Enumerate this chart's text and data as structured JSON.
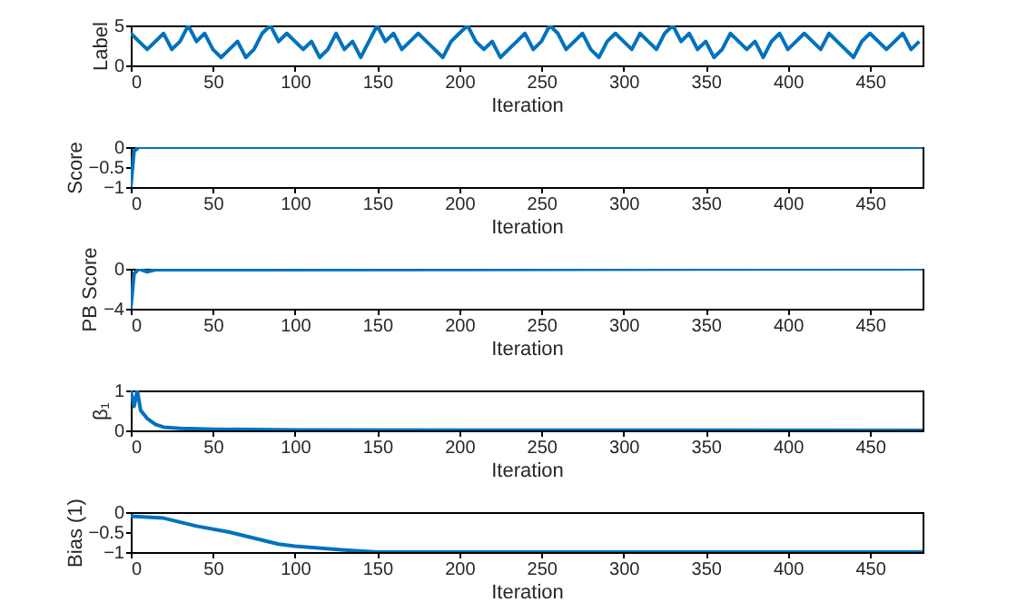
{
  "chart_data": [
    {
      "type": "line",
      "xlabel": "Iteration",
      "ylabel": "Label",
      "xlim": [
        0,
        482
      ],
      "xticks": [
        0,
        50,
        100,
        150,
        200,
        250,
        300,
        350,
        400,
        450
      ],
      "ylim": [
        0,
        5
      ],
      "yticks": [
        0,
        5
      ],
      "line_style": "solid",
      "x": [
        0,
        5,
        10,
        15,
        20,
        25,
        30,
        35,
        40,
        45,
        50,
        55,
        60,
        65,
        70,
        75,
        80,
        85,
        90,
        95,
        100,
        105,
        110,
        115,
        120,
        125,
        130,
        135,
        140,
        145,
        150,
        155,
        160,
        165,
        170,
        175,
        180,
        185,
        190,
        195,
        200,
        205,
        210,
        215,
        220,
        225,
        230,
        235,
        240,
        245,
        250,
        255,
        260,
        265,
        270,
        275,
        280,
        285,
        290,
        295,
        300,
        305,
        310,
        315,
        320,
        325,
        330,
        335,
        340,
        345,
        350,
        355,
        360,
        365,
        370,
        375,
        380,
        385,
        390,
        395,
        400,
        405,
        410,
        415,
        420,
        425,
        430,
        435,
        440,
        445,
        450,
        455,
        460,
        465,
        470,
        475,
        480
      ],
      "series": [
        {
          "color": "#0072bd",
          "values": [
            4,
            3,
            2,
            3,
            4,
            2,
            3,
            5,
            3,
            4,
            2,
            1,
            2,
            3,
            1,
            2,
            4,
            5,
            3,
            4,
            3,
            2,
            3,
            1,
            2,
            4,
            2,
            3,
            1,
            3,
            5,
            3,
            4,
            2,
            3,
            4,
            3,
            2,
            1,
            3,
            4,
            5,
            3,
            2,
            3,
            1,
            2,
            3,
            4,
            2,
            3,
            5,
            4,
            2,
            3,
            4,
            2,
            1,
            3,
            4,
            3,
            2,
            4,
            3,
            2,
            4,
            5,
            3,
            4,
            2,
            3,
            1,
            2,
            4,
            3,
            2,
            3,
            1,
            3,
            4,
            2,
            3,
            4,
            3,
            2,
            4,
            3,
            2,
            1,
            3,
            4,
            3,
            2,
            3,
            4,
            2,
            3
          ]
        }
      ]
    },
    {
      "type": "line",
      "xlabel": "Iteration",
      "ylabel": "Score",
      "xlim": [
        0,
        482
      ],
      "xticks": [
        0,
        50,
        100,
        150,
        200,
        250,
        300,
        350,
        400,
        450
      ],
      "ylim": [
        -1,
        0
      ],
      "yticks": [
        -1,
        -0.5,
        0
      ],
      "line_style": "solid",
      "x": [
        0,
        2,
        5,
        482
      ],
      "series": [
        {
          "color": "#0072bd",
          "values": [
            -1,
            -0.1,
            0,
            0
          ]
        }
      ]
    },
    {
      "type": "line",
      "xlabel": "Iteration",
      "ylabel": "PB Score",
      "xlim": [
        0,
        482
      ],
      "xticks": [
        0,
        50,
        100,
        150,
        200,
        250,
        300,
        350,
        400,
        450
      ],
      "ylim": [
        -4,
        0
      ],
      "yticks": [
        -4,
        0
      ],
      "line_style": "solid",
      "x": [
        0,
        2,
        5,
        10,
        15,
        482
      ],
      "series": [
        {
          "color": "#0072bd",
          "values": [
            -4,
            -0.5,
            0,
            -0.3,
            -0.1,
            0
          ]
        }
      ]
    },
    {
      "type": "line",
      "xlabel": "Iteration",
      "ylabel": "β₁",
      "xlim": [
        0,
        482
      ],
      "xticks": [
        0,
        50,
        100,
        150,
        200,
        250,
        300,
        350,
        400,
        450
      ],
      "ylim": [
        0,
        1
      ],
      "yticks": [
        0,
        1
      ],
      "line_style": "solid",
      "x": [
        0,
        2,
        4,
        6,
        10,
        15,
        20,
        30,
        50,
        100,
        482
      ],
      "series": [
        {
          "color": "#0072bd",
          "values": [
            1,
            0.6,
            1,
            0.5,
            0.3,
            0.15,
            0.08,
            0.05,
            0.03,
            0.01,
            0
          ]
        }
      ]
    },
    {
      "type": "line",
      "xlabel": "Iteration",
      "ylabel": "Bias (1)",
      "xlim": [
        0,
        482
      ],
      "xticks": [
        0,
        50,
        100,
        150,
        200,
        250,
        300,
        350,
        400,
        450
      ],
      "ylim": [
        -1,
        0
      ],
      "yticks": [
        -1,
        -0.5,
        0
      ],
      "line_style": "solid",
      "x": [
        0,
        20,
        40,
        60,
        90,
        100,
        130,
        150,
        482
      ],
      "series": [
        {
          "color": "#0072bd",
          "values": [
            -0.1,
            -0.15,
            -0.35,
            -0.5,
            -0.8,
            -0.85,
            -0.95,
            -1,
            -1
          ]
        }
      ]
    }
  ]
}
